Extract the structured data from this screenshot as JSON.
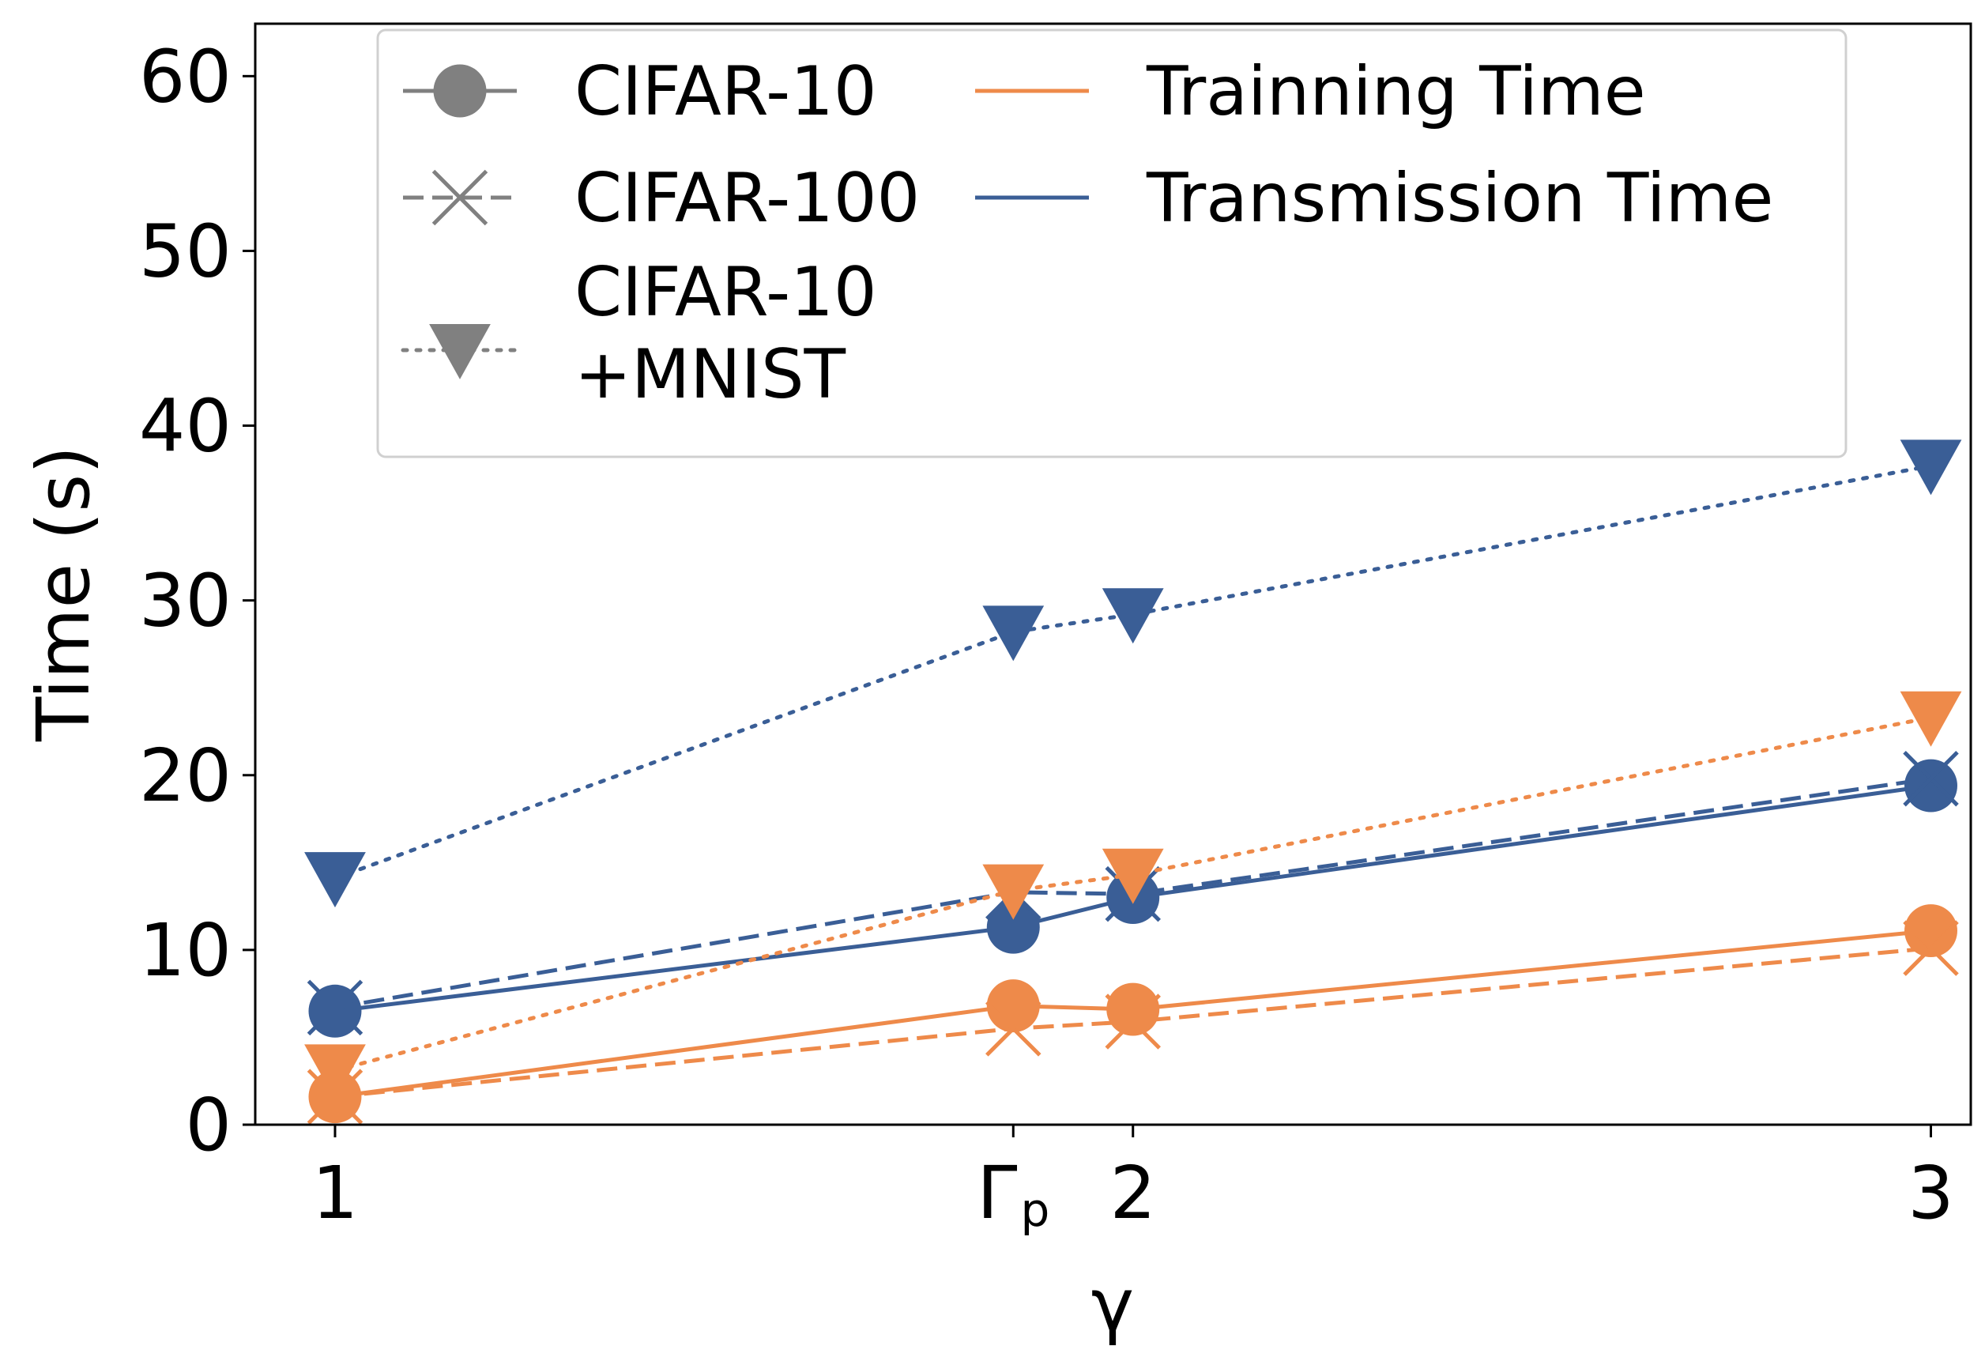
{
  "chart_data": {
    "type": "line",
    "title": "",
    "xlabel": "γ",
    "ylabel": "Time (s)",
    "xlim": [
      0.9,
      3.05
    ],
    "ylim": [
      0,
      63
    ],
    "grid": false,
    "x_ticks": [
      {
        "value": 1,
        "label": "1"
      },
      {
        "value": 1.85,
        "label": "Γ",
        "sub": "p"
      },
      {
        "value": 2,
        "label": "2"
      },
      {
        "value": 3,
        "label": "3"
      }
    ],
    "y_ticks": [
      0,
      10,
      20,
      30,
      40,
      50,
      60
    ],
    "colors": {
      "training": "#ee8a4a",
      "transmission": "#3a5e96",
      "legend_gray": "#808080",
      "axis": "#000000"
    },
    "legend": {
      "position": "top",
      "datasets": [
        {
          "label": "CIFAR-10",
          "linestyle": "solid",
          "marker": "circle"
        },
        {
          "label": "CIFAR-100",
          "linestyle": "dashed",
          "marker": "x"
        },
        {
          "label": "CIFAR-10",
          "label2": "+MNIST",
          "linestyle": "dotted",
          "marker": "triangle-down"
        }
      ],
      "metrics": [
        {
          "label": "Trainning Time",
          "metric": "training"
        },
        {
          "label": "Transmission Time",
          "metric": "transmission"
        }
      ]
    },
    "series": [
      {
        "name": "CIFAR-10 Transmission Time",
        "dataset": "CIFAR-10",
        "metric": "transmission",
        "linestyle": "solid",
        "marker": "circle",
        "x": [
          1,
          1.85,
          2,
          3
        ],
        "y": [
          6.5,
          11.3,
          13.0,
          19.4
        ]
      },
      {
        "name": "CIFAR-100 Transmission Time",
        "dataset": "CIFAR-100",
        "metric": "transmission",
        "linestyle": "dashed",
        "marker": "x",
        "x": [
          1,
          1.85,
          2,
          3
        ],
        "y": [
          6.7,
          13.3,
          13.2,
          19.8
        ]
      },
      {
        "name": "CIFAR-10+MNIST Transmission Time",
        "dataset": "CIFAR-10+MNIST",
        "metric": "transmission",
        "linestyle": "dotted",
        "marker": "triangle-down",
        "x": [
          1,
          1.85,
          2,
          3
        ],
        "y": [
          14.1,
          28.2,
          29.2,
          37.7
        ]
      },
      {
        "name": "CIFAR-10 Trainning Time",
        "dataset": "CIFAR-10",
        "metric": "training",
        "linestyle": "solid",
        "marker": "circle",
        "x": [
          1,
          1.85,
          2,
          3
        ],
        "y": [
          1.6,
          6.8,
          6.6,
          11.1
        ]
      },
      {
        "name": "CIFAR-100 Trainning Time",
        "dataset": "CIFAR-100",
        "metric": "training",
        "linestyle": "dashed",
        "marker": "x",
        "x": [
          1,
          1.85,
          2,
          3
        ],
        "y": [
          1.6,
          5.5,
          5.9,
          10.1
        ]
      },
      {
        "name": "CIFAR-10+MNIST Trainning Time",
        "dataset": "CIFAR-10+MNIST",
        "metric": "training",
        "linestyle": "dotted",
        "marker": "triangle-down",
        "x": [
          1,
          1.85,
          2,
          3
        ],
        "y": [
          3.1,
          13.4,
          14.3,
          23.3
        ]
      }
    ]
  }
}
